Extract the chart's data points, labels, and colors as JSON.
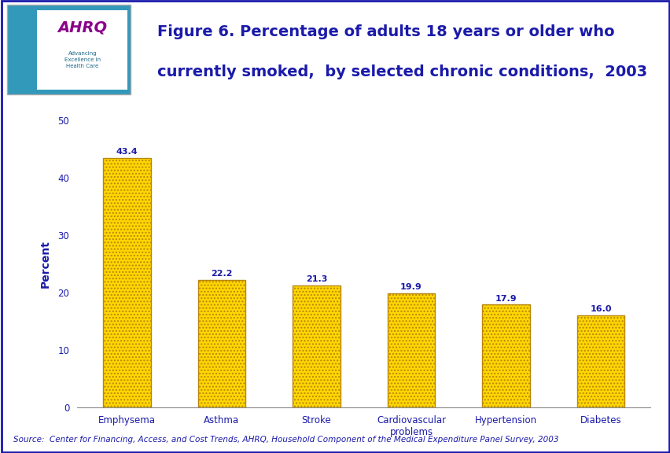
{
  "categories": [
    "Emphysema",
    "Asthma",
    "Stroke",
    "Cardiovascular\nproblems",
    "Hypertension",
    "Diabetes"
  ],
  "values": [
    43.4,
    22.2,
    21.3,
    19.9,
    17.9,
    16.0
  ],
  "value_labels": [
    "43.4",
    "22.2",
    "21.3",
    "19.9",
    "17.9",
    "16.0"
  ],
  "bar_color": "#FFD700",
  "bar_edge_color": "#B8860B",
  "title_line1": "Figure 6. Percentage of adults 18 years or older who",
  "title_line2": "currently smoked,  by selected chronic conditions,  2003",
  "ylabel": "Percent",
  "ylim": [
    0,
    50
  ],
  "yticks": [
    0,
    10,
    20,
    30,
    40,
    50
  ],
  "source_text": "Source:  Center for Financing, Access, and Cost Trends, AHRQ, Household Component of the Medical Expenditure Panel Survey, 2003",
  "title_color": "#1a1aaa",
  "label_color": "#1a1aaa",
  "axis_label_color": "#1a1aaa",
  "source_color": "#1a1aaa",
  "plot_background": "#FFFFFF",
  "fig_background": "#FFFFFF",
  "header_background": "#FFFFFF",
  "header_line_color_dark": "#1a1aaa",
  "header_line_color_light": "#6699CC",
  "bar_label_fontsize": 8,
  "title_fontsize": 14,
  "ylabel_fontsize": 10,
  "tick_fontsize": 8.5,
  "source_fontsize": 7.5,
  "outer_border_color": "#1a1aaa"
}
